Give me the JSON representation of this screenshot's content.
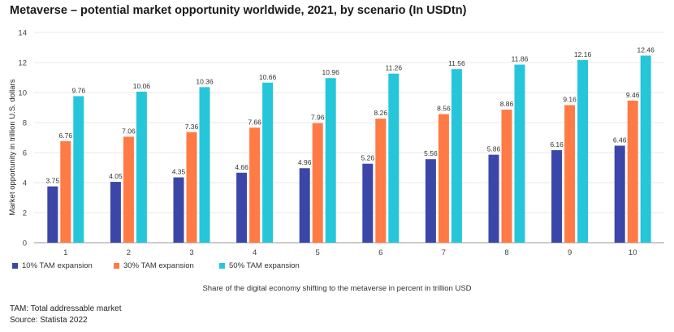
{
  "chart_data": {
    "type": "bar",
    "title": "Metaverse – potential market opportunity worldwide, 2021, by scenario (In USDtn)",
    "xlabel": "Share of the digital economy shifting to the metaverse in percent in trillion USD",
    "ylabel": "Market opportunity in trillion U.S. dollars",
    "ylim": [
      0,
      14
    ],
    "yticks": [
      0,
      2,
      4,
      6,
      8,
      10,
      12,
      14
    ],
    "grid": true,
    "legend_position": "bottom-left",
    "categories": [
      "1",
      "2",
      "3",
      "4",
      "5",
      "6",
      "7",
      "8",
      "9",
      "10"
    ],
    "series": [
      {
        "name": "10% TAM expansion",
        "color": "#3a47a8",
        "values": [
          3.75,
          4.05,
          4.35,
          4.66,
          4.96,
          5.26,
          5.56,
          5.86,
          6.16,
          6.46
        ],
        "labels": [
          "3.75",
          "4.05",
          "4.35",
          "4.66",
          "4.96",
          "5.26",
          "5.56",
          "5.86",
          "6.16",
          "6.46"
        ]
      },
      {
        "name": "30% TAM expansion",
        "color": "#ff7a45",
        "values": [
          6.76,
          7.06,
          7.36,
          7.66,
          7.96,
          8.26,
          8.56,
          8.86,
          9.16,
          9.46
        ],
        "labels": [
          "6.76",
          "7.06",
          "7.36",
          "7.66",
          "7.96",
          "8.26",
          "8.56",
          "8.86",
          "9.16",
          "9.46"
        ]
      },
      {
        "name": "50% TAM expansion",
        "color": "#26c6da",
        "values": [
          9.76,
          10.06,
          10.36,
          10.66,
          10.96,
          11.26,
          11.56,
          11.86,
          12.16,
          12.46
        ],
        "labels": [
          "9.76",
          "10.06",
          "10.36",
          "10.66",
          "10.96",
          "11.26",
          "11.56",
          "11.86",
          "12.16",
          "12.46"
        ]
      }
    ]
  },
  "footnotes": {
    "note": "TAM: Total addressable market",
    "source": "Source: Statista 2022"
  }
}
